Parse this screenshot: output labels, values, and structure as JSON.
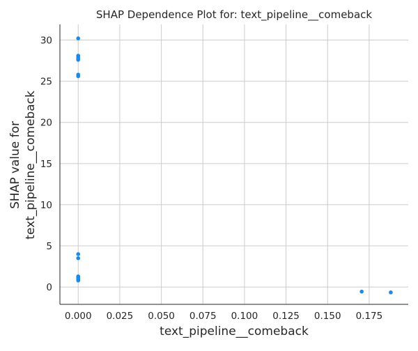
{
  "chart_data": {
    "type": "scatter",
    "title": "SHAP Dependence Plot for: text_pipeline__comeback",
    "xlabel": "text_pipeline__comeback",
    "ylabel_lines": [
      "SHAP value for",
      "text_pipeline__comeback"
    ],
    "xlim": [
      -0.011,
      0.1985
    ],
    "ylim": [
      -2.1,
      31.9
    ],
    "x_ticks": [
      0.0,
      0.025,
      0.05,
      0.075,
      0.1,
      0.125,
      0.15,
      0.175
    ],
    "x_tick_labels": [
      "0.000",
      "0.025",
      "0.050",
      "0.075",
      "0.100",
      "0.125",
      "0.150",
      "0.175"
    ],
    "y_ticks": [
      0,
      5,
      10,
      15,
      20,
      25,
      30
    ],
    "y_tick_labels": [
      "0",
      "5",
      "10",
      "15",
      "20",
      "25",
      "30"
    ],
    "grid": true,
    "marker_color": "#1e88e5",
    "points": [
      {
        "x": 0.0,
        "y": 30.2
      },
      {
        "x": 0.0,
        "y": 28.1
      },
      {
        "x": 0.0,
        "y": 27.9
      },
      {
        "x": 0.0,
        "y": 27.7
      },
      {
        "x": 0.0,
        "y": 27.6
      },
      {
        "x": 0.0,
        "y": 25.8
      },
      {
        "x": 0.0,
        "y": 25.6
      },
      {
        "x": 0.0,
        "y": 4.0
      },
      {
        "x": 0.0,
        "y": 3.5
      },
      {
        "x": 0.0,
        "y": 1.3
      },
      {
        "x": 0.0,
        "y": 1.2
      },
      {
        "x": 0.0,
        "y": 1.1
      },
      {
        "x": 0.0,
        "y": 1.0
      },
      {
        "x": 0.0,
        "y": 0.9
      },
      {
        "x": 0.0,
        "y": 0.8
      },
      {
        "x": 0.1705,
        "y": -0.55
      },
      {
        "x": 0.188,
        "y": -0.65
      }
    ]
  }
}
